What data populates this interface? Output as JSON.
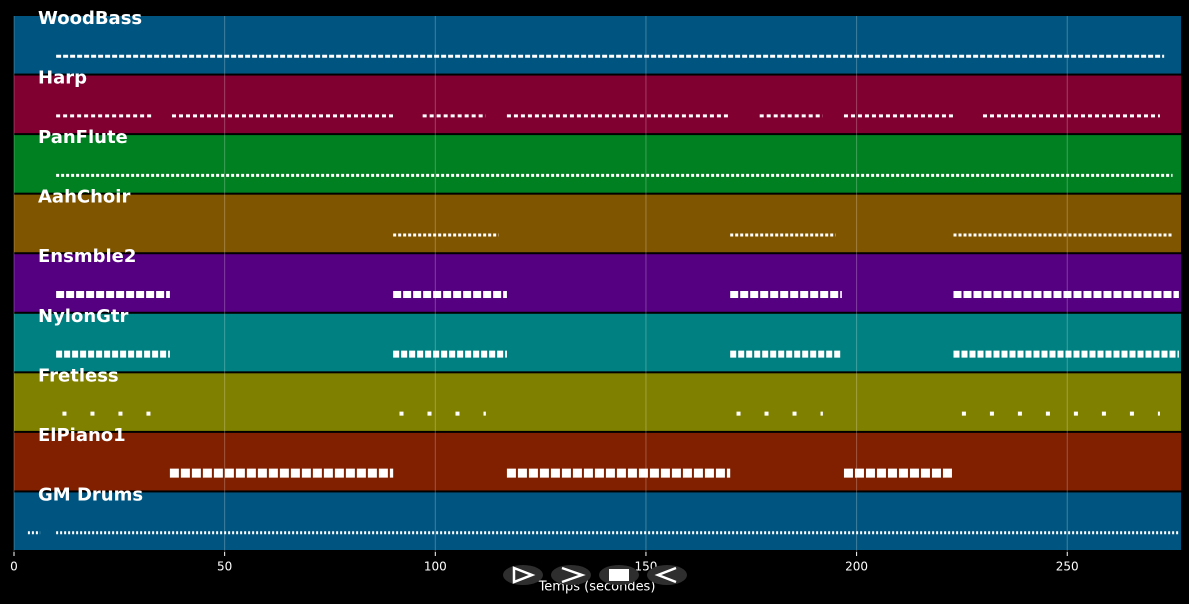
{
  "chart_data": {
    "type": "pianoroll",
    "xlabel": "Temps (secondes)",
    "xlim": [
      0,
      277
    ],
    "xticks": [
      0,
      50,
      100,
      150,
      200,
      250
    ],
    "grid": true,
    "tracks": [
      {
        "name": "WoodBass",
        "color": "#005580",
        "spans": [
          [
            10,
            273
          ]
        ]
      },
      {
        "name": "Harp",
        "color": "#800030",
        "spans": [
          [
            10,
            33
          ],
          [
            37.5,
            90
          ],
          [
            97,
            112
          ],
          [
            117,
            170
          ],
          [
            177,
            192
          ],
          [
            197,
            223
          ],
          [
            230,
            272
          ]
        ]
      },
      {
        "name": "PanFlute",
        "color": "#008020",
        "spans": [
          [
            10,
            275
          ]
        ]
      },
      {
        "name": "AahChoir",
        "color": "#805500",
        "spans": [
          [
            90,
            115
          ],
          [
            170,
            195
          ],
          [
            223,
            275
          ]
        ]
      },
      {
        "name": "Ensmble2",
        "color": "#550080",
        "spans": [
          [
            10,
            37
          ],
          [
            90,
            117
          ],
          [
            170,
            196.5
          ],
          [
            223,
            276.5
          ]
        ]
      },
      {
        "name": "NylonGtr",
        "color": "#008080",
        "spans": [
          [
            10,
            37
          ],
          [
            90,
            117
          ],
          [
            170,
            196.5
          ],
          [
            223,
            276.5
          ]
        ]
      },
      {
        "name": "Fretless",
        "color": "#808000",
        "spans": [
          [
            11.5,
            32.5
          ],
          [
            91.5,
            112
          ],
          [
            171.5,
            192
          ],
          [
            225,
            272
          ]
        ]
      },
      {
        "name": "ElPiano1",
        "color": "#802000",
        "spans": [
          [
            37,
            90
          ],
          [
            117,
            170
          ],
          [
            197,
            223
          ]
        ]
      },
      {
        "name": "GM Drums",
        "color": "#005580",
        "spans": [
          [
            3.3,
            6.2
          ],
          [
            10,
            276.5
          ]
        ]
      }
    ]
  }
}
